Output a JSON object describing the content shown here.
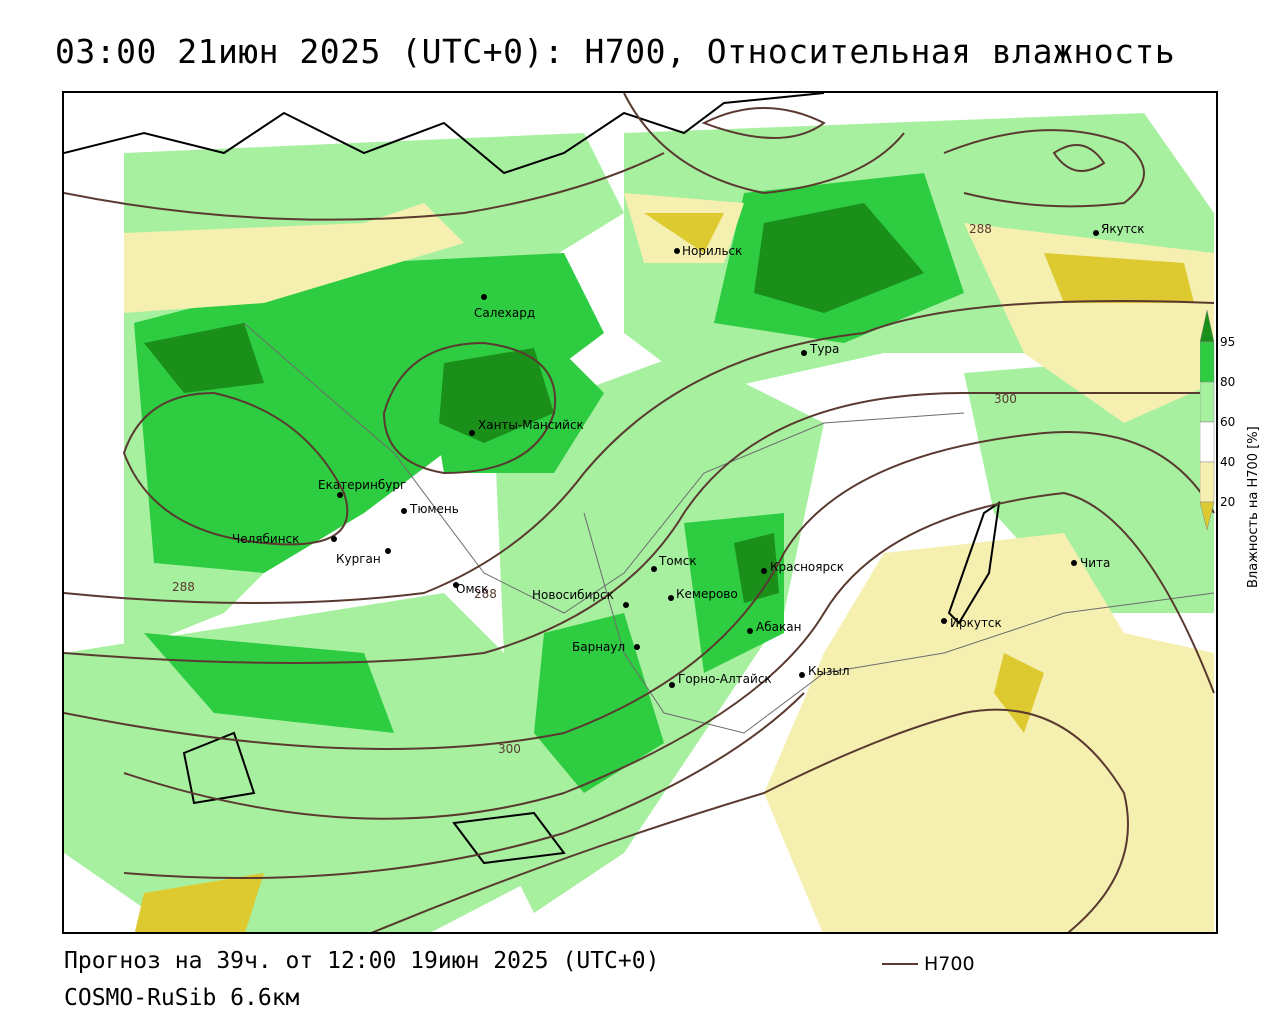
{
  "title": "03:00 21июн 2025 (UTC+0): H700, Относительная влажность",
  "legend": {
    "title": "Влажность на H700 [%]",
    "ticks": [
      "95",
      "80",
      "60",
      "40",
      "20"
    ],
    "colors": [
      "#1a8f1a",
      "#2ecc40",
      "#a6f0a0",
      "#ffffff",
      "#f5f0b0",
      "#ddc930"
    ]
  },
  "footer": {
    "forecast": "Прогноз на 39ч. от 12:00 19июн 2025 (UTC+0)",
    "model": "COSMO-RuSib 6.6км",
    "line_legend": "H700"
  },
  "contour_labels": [
    "288",
    "288",
    "300",
    "300",
    "288"
  ],
  "cities": [
    {
      "name": "Норильск"
    },
    {
      "name": "Якутск"
    },
    {
      "name": "Салехард"
    },
    {
      "name": "Тура"
    },
    {
      "name": "Ханты-Мансийск"
    },
    {
      "name": "Екатеринбург"
    },
    {
      "name": "Тюмень"
    },
    {
      "name": "Челябинск"
    },
    {
      "name": "Курган"
    },
    {
      "name": "Омск"
    },
    {
      "name": "Томск"
    },
    {
      "name": "Красноярск"
    },
    {
      "name": "Новосибирск"
    },
    {
      "name": "Кемерово"
    },
    {
      "name": "Абакан"
    },
    {
      "name": "Барнаул"
    },
    {
      "name": "Кызыл"
    },
    {
      "name": "Горно-Алтайск"
    },
    {
      "name": "Иркутск"
    },
    {
      "name": "Чита"
    }
  ]
}
